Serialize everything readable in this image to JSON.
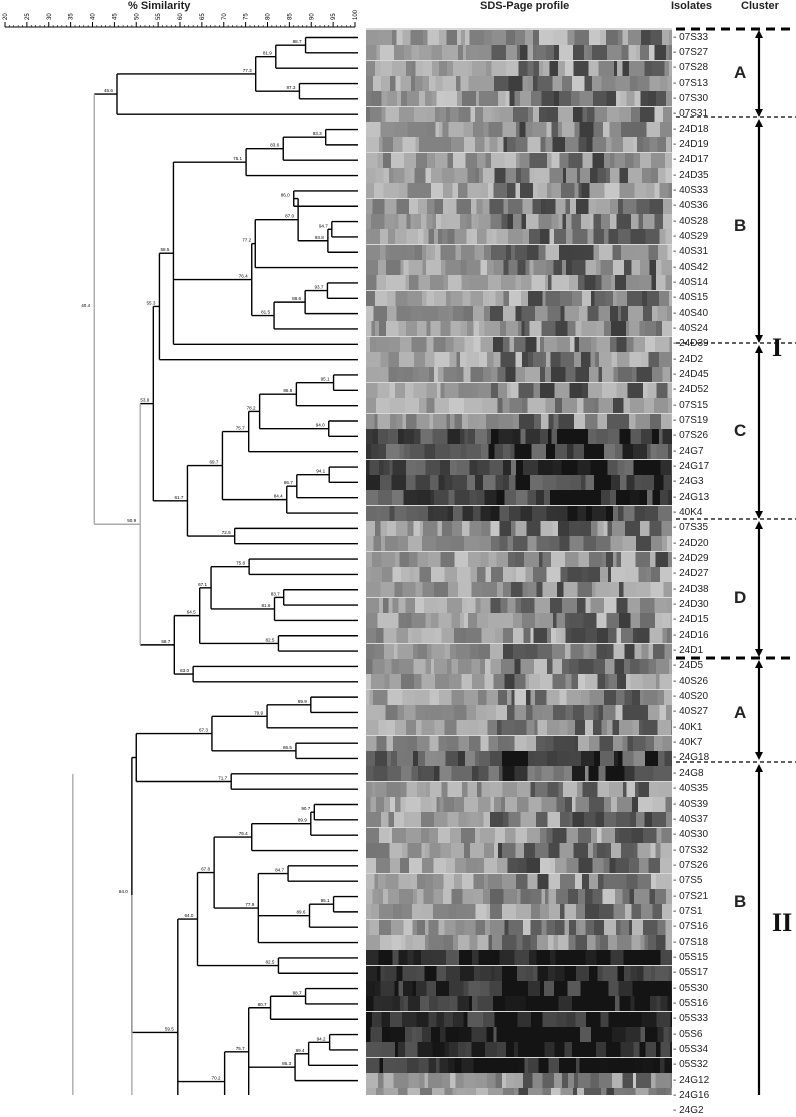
{
  "headers": {
    "similarity": "% Similarity",
    "profile": "SDS-Page profile",
    "isolates": "Isolates",
    "cluster": "Cluster"
  },
  "scale_ticks": [
    "20",
    "25",
    "30",
    "35",
    "40",
    "45",
    "50",
    "55",
    "60",
    "65",
    "70",
    "75",
    "80",
    "85",
    "90",
    "95",
    "100"
  ],
  "isolates": [
    "07S33",
    "07S27",
    "07S28",
    "07S13",
    "07S30",
    "07S31",
    "24D18",
    "24D19",
    "24D17",
    "24D35",
    "40S33",
    "40S36",
    "40S28",
    "40S29",
    "40S31",
    "40S42",
    "40S14",
    "40S15",
    "40S40",
    "40S24",
    "24D39",
    "24D2",
    "24D45",
    "24D52",
    "07S15",
    "07S19",
    "07S26",
    "24G7",
    "24G17",
    "24G3",
    "24G13",
    "40K4",
    "07S35",
    "24D20",
    "24D29",
    "24D27",
    "24D38",
    "24D30",
    "24D15",
    "24D16",
    "24D1",
    "24D5",
    "40S26",
    "40S20",
    "40S27",
    "40K1",
    "40K7",
    "24G18",
    "24G8",
    "40S35",
    "40S39",
    "40S37",
    "40S30",
    "07S32",
    "07S26",
    "07S5",
    "07S21",
    "07S1",
    "07S16",
    "07S18",
    "05S15",
    "05S17",
    "05S30",
    "05S16",
    "05S33",
    "05S6",
    "05S34",
    "05S32",
    "24G12",
    "24G16",
    "24G2"
  ],
  "node_labels": [
    "88.7",
    "81.9",
    "77.3",
    "87.3",
    "45.6",
    "93.3",
    "83.6",
    "75.1",
    "86.0",
    "87.0",
    "94.7",
    "93.8",
    "77.2",
    "93.7",
    "88.6",
    "81.5",
    "76.4",
    "58.5",
    "55.3",
    "95.1",
    "86.6",
    "78.2",
    "94.0",
    "75.7",
    "94.1",
    "86.7",
    "84.4",
    "69.7",
    "72.5",
    "61.7",
    "53.9",
    "40.4",
    "75.8",
    "83.7",
    "67.1",
    "81.6",
    "82.5",
    "64.5",
    "63.0",
    "58.7",
    "50.9",
    "89.9",
    "79.9",
    "67.3",
    "86.5",
    "71.7",
    "84.0",
    "90.7",
    "89.9",
    "76.4",
    "84.7",
    "67.8",
    "95.1",
    "77.9",
    "89.6",
    "64.0",
    "82.5",
    "88.7",
    "80.7",
    "94.2",
    "75.7",
    "89.4",
    "86.3",
    "70.2",
    "59.5",
    "84.9",
    "69.4",
    "87.8"
  ],
  "clusters": {
    "A1": "A",
    "B1": "B",
    "C": "C",
    "D": "D",
    "A2": "A",
    "B2": "B"
  },
  "roman": {
    "I": "I",
    "II": "II"
  },
  "colors": {
    "line": "#000000",
    "root_line": "#aaaaaa",
    "gel_bg": "#d8d8d8"
  }
}
